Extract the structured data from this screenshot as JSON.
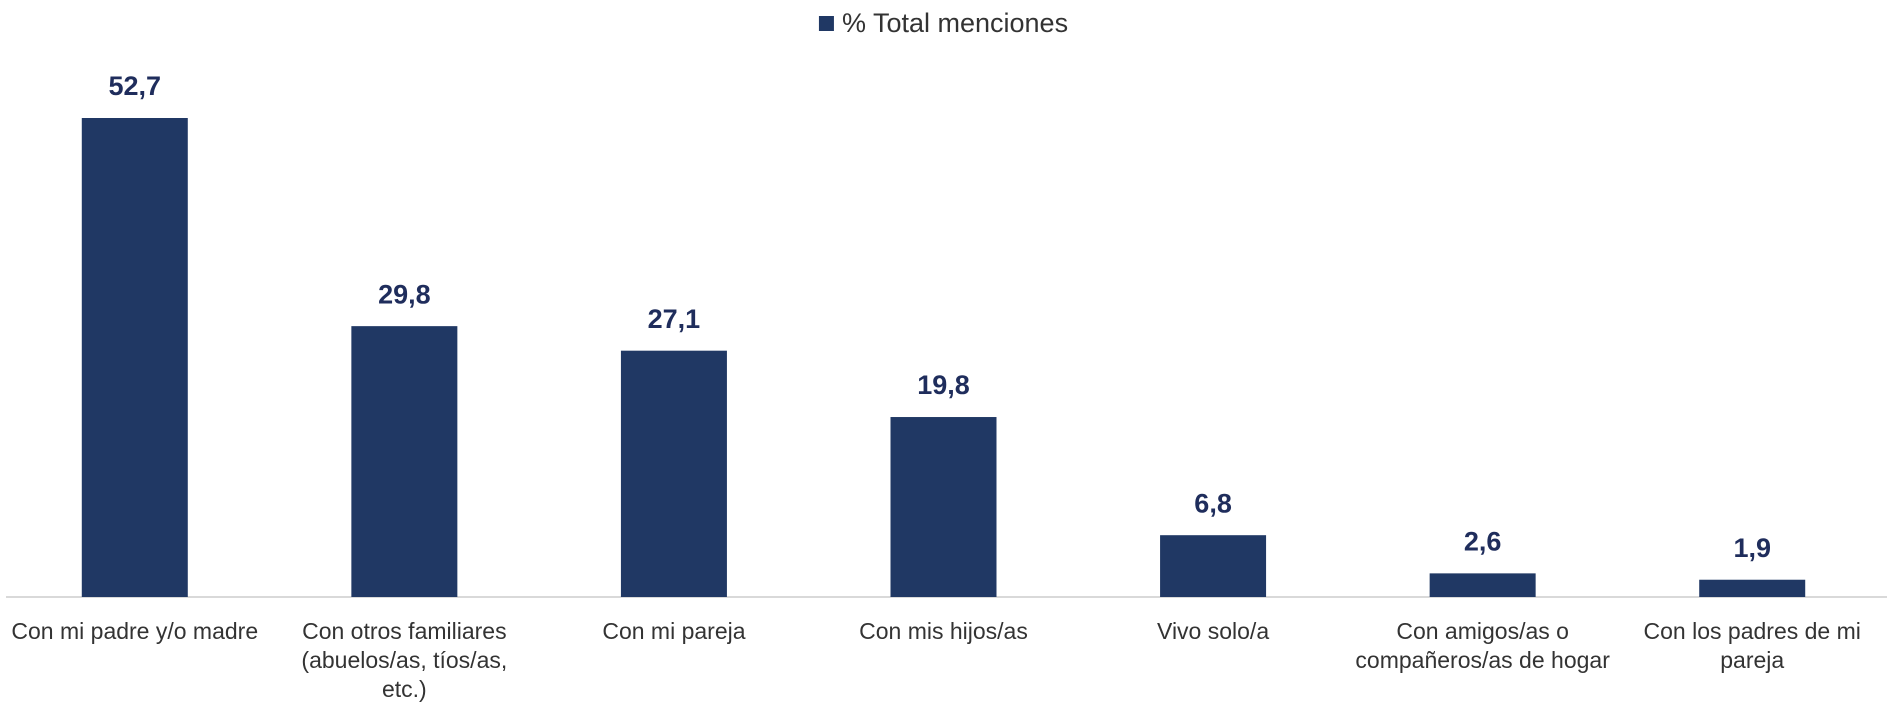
{
  "chart_data": {
    "type": "bar",
    "categories": [
      "Con mi padre y/o madre",
      "Con otros familiares (abuelos/as, tíos/as, etc.)",
      "Con mi pareja",
      "Con mis hijos/as",
      "Vivo solo/a",
      "Con amigos/as o compañeros/as de hogar",
      "Con los padres de mi pareja"
    ],
    "series": [
      {
        "name": "% Total menciones",
        "color": "#203864",
        "values": [
          52.7,
          29.8,
          27.1,
          19.8,
          6.8,
          2.6,
          1.9
        ],
        "value_labels": [
          "52,7",
          "29,8",
          "27,1",
          "19,8",
          "6,8",
          "2,6",
          "1,9"
        ]
      }
    ],
    "legend": "top"
  }
}
